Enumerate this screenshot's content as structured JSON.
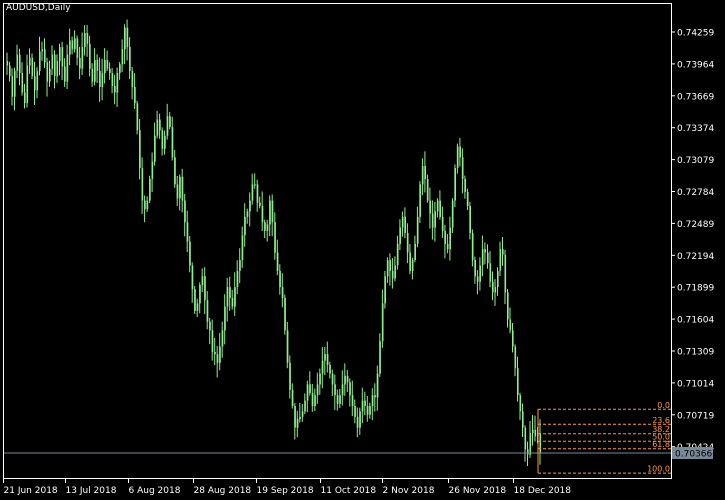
{
  "title": "AUDUSD,Daily",
  "colors": {
    "background": "#000000",
    "frame": "#ffffff",
    "candle": "#90ee90",
    "fib": "#ff9933",
    "price_line": "#778899",
    "text": "#ffffff"
  },
  "chart_data": {
    "type": "candlestick",
    "symbol": "AUDUSD",
    "timeframe": "Daily",
    "y_ticks": [
      0.74259,
      0.73964,
      0.73669,
      0.73374,
      0.73079,
      0.72784,
      0.72489,
      0.72194,
      0.71899,
      0.71604,
      0.71309,
      0.71014,
      0.70719,
      0.70424
    ],
    "ylim": [
      0.7008,
      0.7456
    ],
    "x_ticks": [
      "21 Jun 2018",
      "13 Jul 2018",
      "6 Aug 2018",
      "28 Aug 2018",
      "19 Sep 2018",
      "11 Oct 2018",
      "2 Nov 2018",
      "26 Nov 2018",
      "18 Dec 2018"
    ],
    "current_price": 0.70366,
    "current_price_label": "0.70366",
    "fibonacci": {
      "high": 0.7077,
      "low": 0.7018,
      "levels": [
        {
          "ratio": 0.0,
          "label": "0.0"
        },
        {
          "ratio": 0.236,
          "label": "23.6"
        },
        {
          "ratio": 0.382,
          "label": "38.2"
        },
        {
          "ratio": 0.5,
          "label": "50.0"
        },
        {
          "ratio": 0.618,
          "label": "61.8"
        },
        {
          "ratio": 1.0,
          "label": "100.0"
        }
      ]
    },
    "close_path": [
      0.7395,
      0.7385,
      0.7366,
      0.739,
      0.7405,
      0.7388,
      0.737,
      0.736,
      0.7395,
      0.7402,
      0.7385,
      0.7372,
      0.739,
      0.7408,
      0.741,
      0.7398,
      0.738,
      0.7392,
      0.7405,
      0.7385,
      0.7399,
      0.7412,
      0.7394,
      0.738,
      0.7405,
      0.7418,
      0.741,
      0.742,
      0.7402,
      0.7392,
      0.7412,
      0.7425,
      0.7415,
      0.7392,
      0.738,
      0.74,
      0.739,
      0.7375,
      0.7388,
      0.74,
      0.7392,
      0.7388,
      0.7376,
      0.737,
      0.7388,
      0.7396,
      0.741,
      0.743,
      0.7412,
      0.739,
      0.7375,
      0.736,
      0.7335,
      0.73,
      0.727,
      0.7262,
      0.727,
      0.729,
      0.7306,
      0.733,
      0.7345,
      0.7335,
      0.7318,
      0.733,
      0.7348,
      0.7338,
      0.731,
      0.7285,
      0.7272,
      0.7292,
      0.727,
      0.725,
      0.7232,
      0.721,
      0.7188,
      0.7168,
      0.7175,
      0.7192,
      0.72,
      0.7178,
      0.7158,
      0.715,
      0.713,
      0.7128,
      0.712,
      0.7135,
      0.715,
      0.7172,
      0.719,
      0.718,
      0.7172,
      0.719,
      0.7205,
      0.7215,
      0.7238,
      0.7255,
      0.726,
      0.727,
      0.7285,
      0.7285,
      0.7268,
      0.7265,
      0.725,
      0.7242,
      0.7248,
      0.727,
      0.725,
      0.7222,
      0.7205,
      0.719,
      0.718,
      0.715,
      0.712,
      0.7095,
      0.708,
      0.706,
      0.7068,
      0.707,
      0.7075,
      0.7085,
      0.71,
      0.7092,
      0.708,
      0.709,
      0.71,
      0.711,
      0.7122,
      0.7128,
      0.7118,
      0.711,
      0.71,
      0.709,
      0.7082,
      0.709,
      0.71,
      0.7108,
      0.7102,
      0.709,
      0.708,
      0.707,
      0.706,
      0.7075,
      0.7085,
      0.708,
      0.7072,
      0.708,
      0.709,
      0.7088,
      0.711,
      0.714,
      0.7175,
      0.72,
      0.7215,
      0.7205,
      0.7198,
      0.721,
      0.723,
      0.7245,
      0.7255,
      0.724,
      0.7222,
      0.7205,
      0.7215,
      0.723,
      0.7255,
      0.7285,
      0.7302,
      0.729,
      0.727,
      0.7258,
      0.7245,
      0.726,
      0.727,
      0.7255,
      0.7242,
      0.723,
      0.7225,
      0.7245,
      0.727,
      0.73,
      0.732,
      0.731,
      0.729,
      0.7278,
      0.7265,
      0.724,
      0.7215,
      0.72,
      0.7195,
      0.721,
      0.7225,
      0.7222,
      0.7212,
      0.7195,
      0.7185,
      0.719,
      0.7205,
      0.7225,
      0.722,
      0.7185,
      0.716,
      0.715,
      0.7135,
      0.7115,
      0.709,
      0.7075,
      0.706,
      0.704,
      0.7035,
      0.7055,
      0.7058,
      0.7052,
      0.7055,
      0.7036
    ]
  }
}
